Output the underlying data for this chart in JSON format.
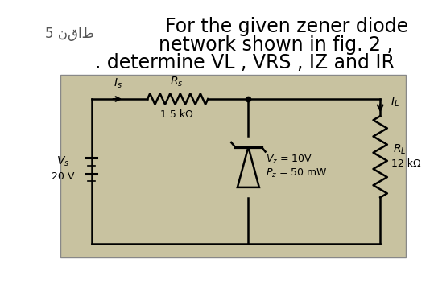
{
  "bg_color": "#ffffff",
  "circuit_bg": "#c8c2a0",
  "text_line1": "For the given zener diode",
  "text_line2": "network shown in fig. 2 ,",
  "text_line3": ". determine VL , VRS , IZ and IR",
  "arabic_text": "5 نقاط",
  "vs_label": "Vs",
  "vs_value": "20 V",
  "rs_label": "Rs",
  "is_label": "Is",
  "rs_value": "1.5 kΩ",
  "vz_label": "Vz = 10V",
  "pz_label": "Pz = 50 mW",
  "rl_label": "RL",
  "rl_value": "12 kΩ",
  "il_label": "IL",
  "title_fontsize": 17,
  "arabic_fontsize": 12
}
